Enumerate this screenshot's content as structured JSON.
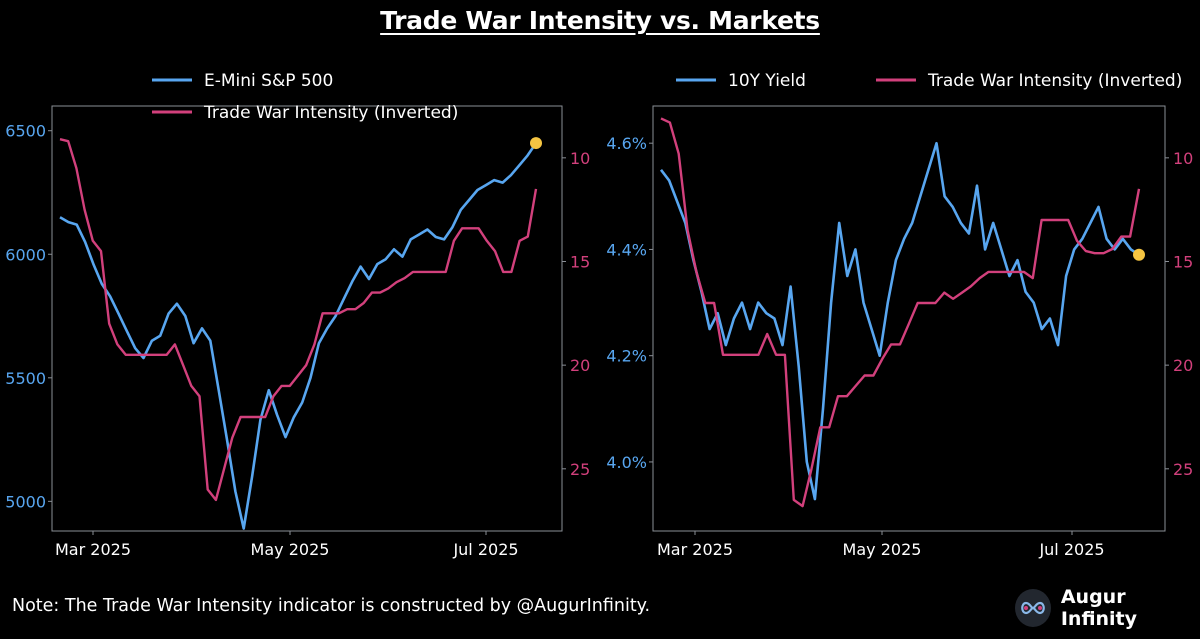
{
  "title": "Trade War Intensity vs. Markets",
  "footnote": "Note: The Trade War Intensity indicator is constructed by @AugurInfinity.",
  "brand": {
    "name": "Augur Infinity",
    "logo_icon": "infinity-icon"
  },
  "colors": {
    "blue": "#58a6f0",
    "pink": "#d2407c",
    "dot": "#f5c542",
    "axis": "#8a8f96",
    "background": "#000000"
  },
  "chart_data": [
    {
      "type": "line",
      "title": "E-Mini S&P 500 vs Trade War Intensity (Inverted)",
      "legend_position": "top-center",
      "x_ticks": [
        "Mar 2025",
        "May 2025",
        "Jul 2025"
      ],
      "y_left": {
        "ticks": [
          5000,
          5500,
          6000,
          6500
        ],
        "range": [
          4880,
          6600
        ]
      },
      "y_right": {
        "ticks": [
          10,
          15,
          20,
          25
        ],
        "range": [
          28,
          7.5
        ],
        "inverted": true
      },
      "series": [
        {
          "name": "E-Mini S&P 500",
          "axis": "left",
          "values": [
            6150,
            6130,
            6120,
            6050,
            5960,
            5880,
            5830,
            5760,
            5690,
            5620,
            5580,
            5650,
            5670,
            5760,
            5800,
            5750,
            5640,
            5700,
            5650,
            5450,
            5250,
            5040,
            4890,
            5100,
            5330,
            5450,
            5350,
            5260,
            5340,
            5400,
            5500,
            5640,
            5700,
            5750,
            5820,
            5890,
            5950,
            5900,
            5960,
            5980,
            6020,
            5990,
            6060,
            6080,
            6100,
            6070,
            6060,
            6110,
            6180,
            6220,
            6260,
            6280,
            6300,
            6290,
            6320,
            6360,
            6400,
            6450
          ]
        },
        {
          "name": "Trade War Intensity (Inverted)",
          "axis": "right",
          "values": [
            9.1,
            9.2,
            10.5,
            12.5,
            14,
            14.5,
            18,
            19,
            19.5,
            19.5,
            19.5,
            19.5,
            19.5,
            19.5,
            19,
            20,
            21,
            21.5,
            26,
            26.5,
            25,
            23.5,
            22.5,
            22.5,
            22.5,
            22.5,
            21.5,
            21,
            21,
            20.5,
            20,
            19,
            17.5,
            17.5,
            17.5,
            17.3,
            17.3,
            17,
            16.5,
            16.5,
            16.3,
            16,
            15.8,
            15.5,
            15.5,
            15.5,
            15.5,
            15.5,
            14,
            13.4,
            13.4,
            13.4,
            14,
            14.5,
            15.5,
            15.5,
            14,
            13.8,
            11.5
          ]
        }
      ]
    },
    {
      "type": "line",
      "title": "10Y Yield vs Trade War Intensity (Inverted)",
      "legend_position": "top-center",
      "x_ticks": [
        "Mar 2025",
        "May 2025",
        "Jul 2025"
      ],
      "y_left": {
        "ticks": [
          "4.0%",
          "4.2%",
          "4.4%",
          "4.6%"
        ],
        "tick_values": [
          4.0,
          4.2,
          4.4,
          4.6
        ],
        "range": [
          3.87,
          4.67
        ]
      },
      "y_right": {
        "ticks": [
          10,
          15,
          20,
          25
        ],
        "range": [
          28,
          7.5
        ],
        "inverted": true
      },
      "series": [
        {
          "name": "10Y Yield",
          "axis": "left",
          "values": [
            4.55,
            4.53,
            4.49,
            4.45,
            4.38,
            4.32,
            4.25,
            4.28,
            4.22,
            4.27,
            4.3,
            4.25,
            4.3,
            4.28,
            4.27,
            4.22,
            4.33,
            4.18,
            4.0,
            3.93,
            4.1,
            4.3,
            4.45,
            4.35,
            4.4,
            4.3,
            4.25,
            4.2,
            4.3,
            4.38,
            4.42,
            4.45,
            4.5,
            4.55,
            4.6,
            4.5,
            4.48,
            4.45,
            4.43,
            4.52,
            4.4,
            4.45,
            4.4,
            4.35,
            4.38,
            4.32,
            4.3,
            4.25,
            4.27,
            4.22,
            4.35,
            4.4,
            4.42,
            4.45,
            4.48,
            4.42,
            4.4,
            4.42,
            4.4,
            4.39
          ]
        },
        {
          "name": "Trade War Intensity (Inverted)",
          "axis": "right",
          "values": [
            8.1,
            8.3,
            9.8,
            13.5,
            15.5,
            17,
            17,
            19.5,
            19.5,
            19.5,
            19.5,
            19.5,
            18.5,
            19.5,
            19.5,
            26.5,
            26.8,
            25,
            23,
            23,
            21.5,
            21.5,
            21,
            20.5,
            20.5,
            19.7,
            19,
            19,
            18,
            17,
            17,
            17,
            16.5,
            16.8,
            16.5,
            16.2,
            15.8,
            15.5,
            15.5,
            15.5,
            15.5,
            15.5,
            15.8,
            13,
            13,
            13,
            13,
            14,
            14.5,
            14.6,
            14.6,
            14.4,
            13.8,
            13.8,
            11.5
          ]
        }
      ]
    }
  ]
}
